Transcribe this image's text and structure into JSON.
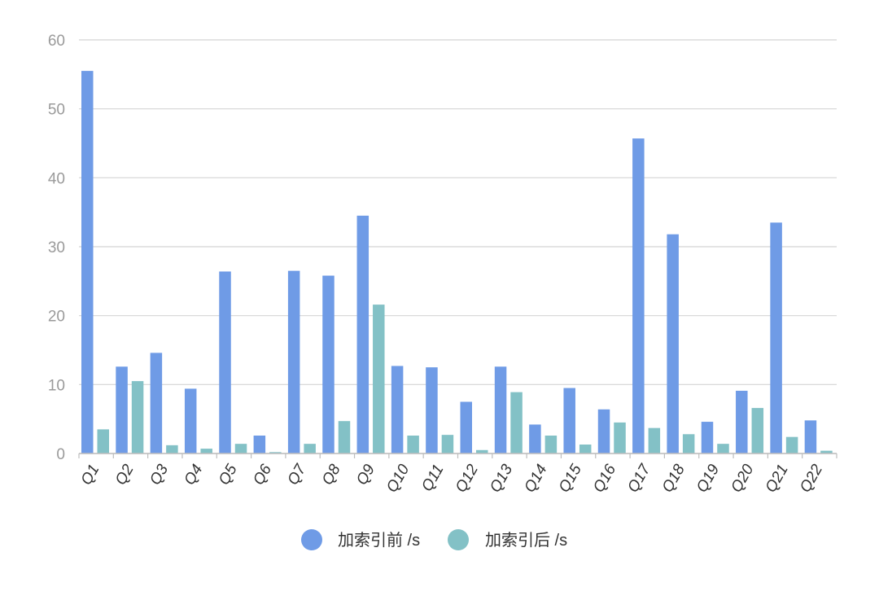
{
  "chart_data": {
    "type": "bar",
    "categories": [
      "Q1",
      "Q2",
      "Q3",
      "Q4",
      "Q5",
      "Q6",
      "Q7",
      "Q8",
      "Q9",
      "Q10",
      "Q11",
      "Q12",
      "Q13",
      "Q14",
      "Q15",
      "Q16",
      "Q17",
      "Q18",
      "Q19",
      "Q20",
      "Q21",
      "Q22"
    ],
    "series": [
      {
        "name": "加索引前 /s",
        "color": "#6f9be6",
        "values": [
          55.5,
          12.6,
          14.6,
          9.4,
          26.4,
          2.6,
          26.5,
          25.8,
          34.5,
          12.7,
          12.5,
          7.5,
          12.6,
          4.2,
          9.5,
          6.4,
          45.7,
          31.8,
          4.6,
          9.1,
          33.5,
          4.8
        ]
      },
      {
        "name": "加索引后 /s",
        "color": "#83c1c6",
        "values": [
          3.5,
          10.5,
          1.2,
          0.7,
          1.4,
          0.2,
          1.4,
          4.7,
          21.6,
          2.6,
          2.7,
          0.5,
          8.9,
          2.6,
          1.3,
          4.5,
          3.7,
          2.8,
          1.4,
          6.6,
          2.4,
          0.4
        ]
      }
    ],
    "ylim": [
      0,
      60
    ],
    "yticks": [
      0,
      10,
      20,
      30,
      40,
      50,
      60
    ],
    "grid": true,
    "legend_position": "bottom-center",
    "xtick_rotation": "-60deg"
  }
}
